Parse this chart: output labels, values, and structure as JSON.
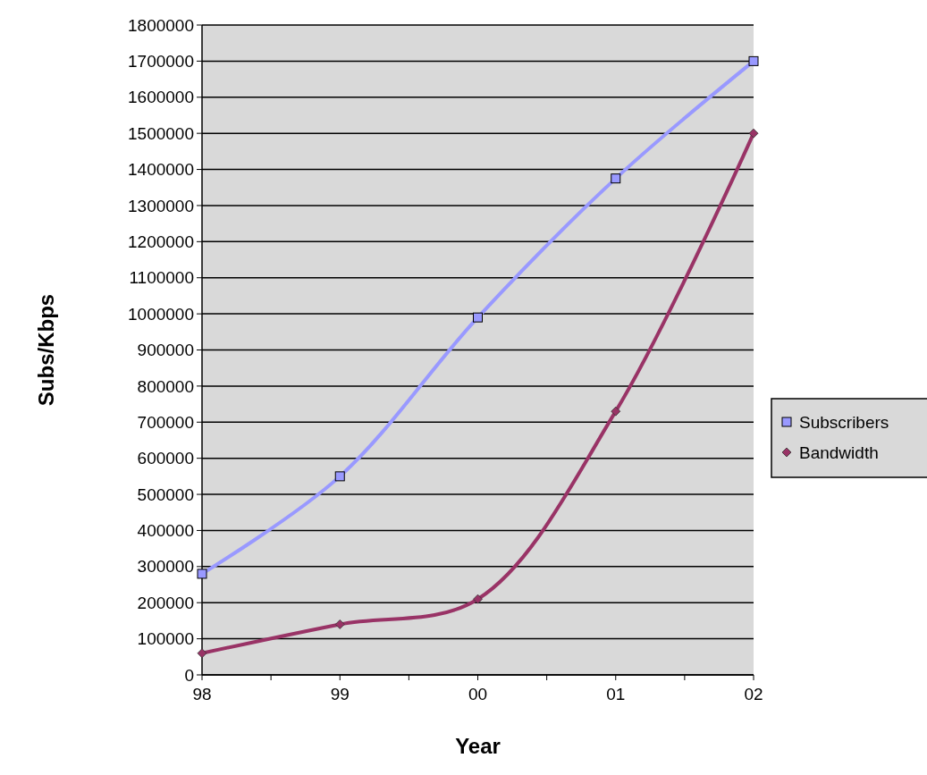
{
  "chart_data": {
    "type": "line",
    "xlabel": "Year",
    "ylabel": "Subs/Kbps",
    "categories": [
      "98",
      "99",
      "00",
      "01",
      "02"
    ],
    "series": [
      {
        "name": "Subscribers",
        "color": "#9999ff",
        "marker": "square",
        "values": [
          280000,
          550000,
          990000,
          1375000,
          1700000
        ]
      },
      {
        "name": "Bandwidth",
        "color": "#993366",
        "marker": "diamond",
        "values": [
          60000,
          140000,
          210000,
          730000,
          1500000
        ]
      }
    ],
    "ylim": [
      0,
      1800000
    ],
    "yticks": [
      0,
      100000,
      200000,
      300000,
      400000,
      500000,
      600000,
      700000,
      800000,
      900000,
      1000000,
      1100000,
      1200000,
      1300000,
      1400000,
      1500000,
      1600000,
      1700000,
      1800000
    ],
    "grid": "y",
    "legend": "right"
  }
}
